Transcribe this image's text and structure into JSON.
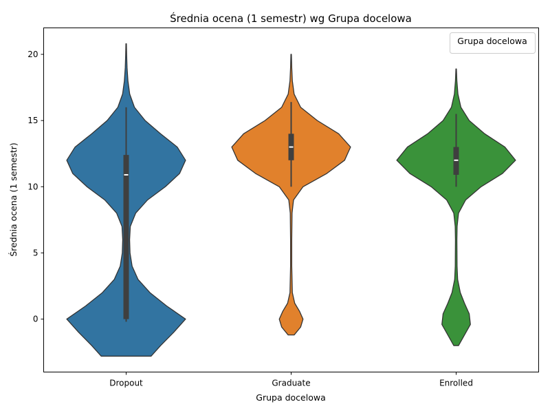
{
  "chart_data": {
    "type": "violin",
    "title": "Średnia ocena (1 semestr) wg Grupa docelowa",
    "xlabel": "Grupa docelowa",
    "ylabel": "Średnia ocena (1 semestr)",
    "ylim": [
      -4,
      22
    ],
    "yticks": [
      0,
      5,
      10,
      15,
      20
    ],
    "grid": false,
    "legend": {
      "title": "Grupa docelowa",
      "placement": "top-right",
      "entries": []
    },
    "categories": [
      "Dropout",
      "Graduate",
      "Enrolled"
    ],
    "series": [
      {
        "category": "Dropout",
        "color": "#3274a1",
        "min": -2.8,
        "max": 20.8,
        "whisker_low": -0.2,
        "whisker_high": 16.0,
        "q1": 0.0,
        "median": 10.9,
        "q3": 12.4,
        "density": [
          [
            -2.8,
            0.42
          ],
          [
            -2.0,
            0.58
          ],
          [
            -1.0,
            0.8
          ],
          [
            0,
            1.0
          ],
          [
            1.0,
            0.68
          ],
          [
            2.0,
            0.4
          ],
          [
            3.0,
            0.2
          ],
          [
            4.0,
            0.1
          ],
          [
            5.0,
            0.065
          ],
          [
            6.0,
            0.058
          ],
          [
            7.0,
            0.07
          ],
          [
            8.0,
            0.16
          ],
          [
            9.0,
            0.36
          ],
          [
            10.0,
            0.66
          ],
          [
            11.0,
            0.9
          ],
          [
            12.0,
            1.0
          ],
          [
            13.0,
            0.86
          ],
          [
            14.0,
            0.58
          ],
          [
            15.0,
            0.32
          ],
          [
            16.0,
            0.14
          ],
          [
            17.0,
            0.06
          ],
          [
            18.0,
            0.03
          ],
          [
            19.0,
            0.015
          ],
          [
            20.0,
            0.008
          ],
          [
            20.8,
            0.004
          ]
        ]
      },
      {
        "category": "Graduate",
        "color": "#e1812c",
        "min": -1.2,
        "max": 20.0,
        "whisker_low": 10.0,
        "whisker_high": 16.4,
        "q1": 12.0,
        "median": 13.0,
        "q3": 14.0,
        "density": [
          [
            -1.2,
            0.05
          ],
          [
            -0.6,
            0.16
          ],
          [
            0,
            0.2
          ],
          [
            0.6,
            0.14
          ],
          [
            1.2,
            0.06
          ],
          [
            2.0,
            0.02
          ],
          [
            4.0,
            0.01
          ],
          [
            6.0,
            0.01
          ],
          [
            8.0,
            0.015
          ],
          [
            9.0,
            0.04
          ],
          [
            10.0,
            0.2
          ],
          [
            11.0,
            0.6
          ],
          [
            12.0,
            0.9
          ],
          [
            13.0,
            1.0
          ],
          [
            14.0,
            0.8
          ],
          [
            15.0,
            0.44
          ],
          [
            16.0,
            0.16
          ],
          [
            17.0,
            0.05
          ],
          [
            18.0,
            0.02
          ],
          [
            19.0,
            0.01
          ],
          [
            20.0,
            0.004
          ]
        ]
      },
      {
        "category": "Enrolled",
        "color": "#3a923a",
        "min": -2.0,
        "max": 18.9,
        "whisker_low": 10.0,
        "whisker_high": 15.5,
        "q1": 10.9,
        "median": 12.0,
        "q3": 13.0,
        "density": [
          [
            -2.0,
            0.04
          ],
          [
            -1.2,
            0.14
          ],
          [
            -0.4,
            0.24
          ],
          [
            0.4,
            0.22
          ],
          [
            1.2,
            0.14
          ],
          [
            2.0,
            0.07
          ],
          [
            3.0,
            0.025
          ],
          [
            4.0,
            0.015
          ],
          [
            6.0,
            0.012
          ],
          [
            7.0,
            0.016
          ],
          [
            8.0,
            0.04
          ],
          [
            9.0,
            0.16
          ],
          [
            10.0,
            0.42
          ],
          [
            11.0,
            0.78
          ],
          [
            12.0,
            1.0
          ],
          [
            13.0,
            0.82
          ],
          [
            14.0,
            0.48
          ],
          [
            15.0,
            0.22
          ],
          [
            16.0,
            0.08
          ],
          [
            17.0,
            0.03
          ],
          [
            18.0,
            0.012
          ],
          [
            18.9,
            0.004
          ]
        ]
      }
    ]
  },
  "colors": {
    "outline": "#333333",
    "box": "#3f3f3f",
    "median": "#ffffff"
  }
}
